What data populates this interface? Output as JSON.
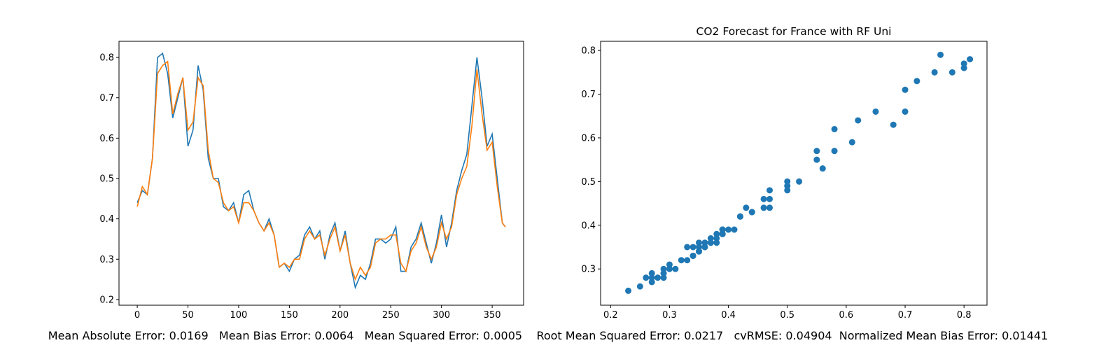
{
  "chart_data": [
    {
      "type": "line",
      "x": [
        0,
        5,
        10,
        15,
        20,
        25,
        30,
        35,
        40,
        45,
        50,
        55,
        60,
        65,
        70,
        75,
        80,
        85,
        90,
        95,
        100,
        105,
        110,
        115,
        120,
        125,
        130,
        135,
        140,
        145,
        150,
        155,
        160,
        165,
        170,
        175,
        180,
        185,
        190,
        195,
        200,
        205,
        210,
        215,
        220,
        225,
        230,
        235,
        240,
        245,
        250,
        255,
        260,
        265,
        270,
        275,
        280,
        285,
        290,
        295,
        300,
        305,
        310,
        315,
        320,
        325,
        330,
        335,
        340,
        345,
        350,
        355,
        360,
        363
      ],
      "series": [
        {
          "color": "#1f77b4",
          "values": [
            0.44,
            0.47,
            0.46,
            0.55,
            0.8,
            0.81,
            0.76,
            0.65,
            0.7,
            0.75,
            0.58,
            0.62,
            0.78,
            0.72,
            0.55,
            0.5,
            0.5,
            0.43,
            0.42,
            0.44,
            0.39,
            0.46,
            0.47,
            0.42,
            0.39,
            0.37,
            0.4,
            0.36,
            0.28,
            0.29,
            0.27,
            0.3,
            0.31,
            0.36,
            0.38,
            0.35,
            0.37,
            0.3,
            0.36,
            0.39,
            0.32,
            0.37,
            0.29,
            0.23,
            0.26,
            0.25,
            0.29,
            0.35,
            0.35,
            0.34,
            0.35,
            0.38,
            0.27,
            0.27,
            0.33,
            0.35,
            0.39,
            0.34,
            0.29,
            0.34,
            0.41,
            0.33,
            0.39,
            0.47,
            0.52,
            0.56,
            0.68,
            0.8,
            0.7,
            0.58,
            0.61,
            0.5,
            0.39,
            0.38
          ]
        },
        {
          "color": "#ff7f0e",
          "values": [
            0.43,
            0.48,
            0.46,
            0.55,
            0.76,
            0.78,
            0.79,
            0.66,
            0.71,
            0.75,
            0.62,
            0.64,
            0.75,
            0.73,
            0.57,
            0.5,
            0.49,
            0.44,
            0.42,
            0.43,
            0.39,
            0.44,
            0.44,
            0.42,
            0.39,
            0.37,
            0.39,
            0.36,
            0.28,
            0.29,
            0.28,
            0.3,
            0.3,
            0.35,
            0.37,
            0.35,
            0.36,
            0.31,
            0.35,
            0.38,
            0.32,
            0.36,
            0.29,
            0.25,
            0.28,
            0.26,
            0.28,
            0.34,
            0.35,
            0.35,
            0.36,
            0.36,
            0.29,
            0.27,
            0.32,
            0.34,
            0.38,
            0.33,
            0.3,
            0.33,
            0.39,
            0.35,
            0.38,
            0.46,
            0.5,
            0.53,
            0.63,
            0.77,
            0.66,
            0.57,
            0.59,
            0.48,
            0.39,
            0.38
          ]
        }
      ],
      "xlim": [
        -18,
        381
      ],
      "xticks": [
        0,
        50,
        100,
        150,
        200,
        250,
        300,
        350
      ],
      "ylim": [
        0.186,
        0.84
      ],
      "yticks": [
        0.2,
        0.3,
        0.4,
        0.5,
        0.6,
        0.7,
        0.8
      ]
    },
    {
      "type": "scatter",
      "title": "CO2 Forecast for France with RF Uni",
      "color": "#1f77b4",
      "x": [
        0.44,
        0.47,
        0.46,
        0.55,
        0.8,
        0.81,
        0.76,
        0.65,
        0.7,
        0.75,
        0.58,
        0.62,
        0.78,
        0.72,
        0.55,
        0.5,
        0.5,
        0.43,
        0.42,
        0.44,
        0.39,
        0.46,
        0.47,
        0.42,
        0.39,
        0.37,
        0.4,
        0.36,
        0.28,
        0.29,
        0.27,
        0.3,
        0.31,
        0.36,
        0.38,
        0.35,
        0.37,
        0.3,
        0.36,
        0.39,
        0.32,
        0.37,
        0.29,
        0.23,
        0.26,
        0.25,
        0.29,
        0.35,
        0.35,
        0.34,
        0.35,
        0.38,
        0.27,
        0.27,
        0.33,
        0.35,
        0.39,
        0.34,
        0.29,
        0.34,
        0.41,
        0.33,
        0.39,
        0.47,
        0.52,
        0.56,
        0.68,
        0.8,
        0.7,
        0.58,
        0.61,
        0.5,
        0.39,
        0.38
      ],
      "values": [
        0.43,
        0.48,
        0.46,
        0.55,
        0.76,
        0.78,
        0.79,
        0.66,
        0.71,
        0.75,
        0.62,
        0.64,
        0.75,
        0.73,
        0.57,
        0.5,
        0.49,
        0.44,
        0.42,
        0.43,
        0.39,
        0.44,
        0.44,
        0.42,
        0.39,
        0.37,
        0.39,
        0.36,
        0.28,
        0.29,
        0.28,
        0.3,
        0.3,
        0.35,
        0.37,
        0.35,
        0.36,
        0.31,
        0.35,
        0.38,
        0.32,
        0.36,
        0.29,
        0.25,
        0.28,
        0.26,
        0.28,
        0.34,
        0.35,
        0.35,
        0.36,
        0.36,
        0.29,
        0.27,
        0.32,
        0.34,
        0.38,
        0.33,
        0.3,
        0.33,
        0.39,
        0.35,
        0.38,
        0.46,
        0.5,
        0.53,
        0.63,
        0.77,
        0.66,
        0.57,
        0.59,
        0.48,
        0.39,
        0.38
      ],
      "xlim": [
        0.183,
        0.839
      ],
      "xticks": [
        0.2,
        0.3,
        0.4,
        0.5,
        0.6,
        0.7,
        0.8
      ],
      "ylim": [
        0.217,
        0.821
      ],
      "yticks": [
        0.3,
        0.4,
        0.5,
        0.6,
        0.7,
        0.8
      ]
    }
  ],
  "footer": "Mean Absolute Error: 0.0169   Mean Bias Error: 0.0064   Mean Squared Error: 0.0005    Root Mean Squared Error: 0.0217   cvRMSE: 0.04904  Normalized Mean Bias Error: 0.01441"
}
